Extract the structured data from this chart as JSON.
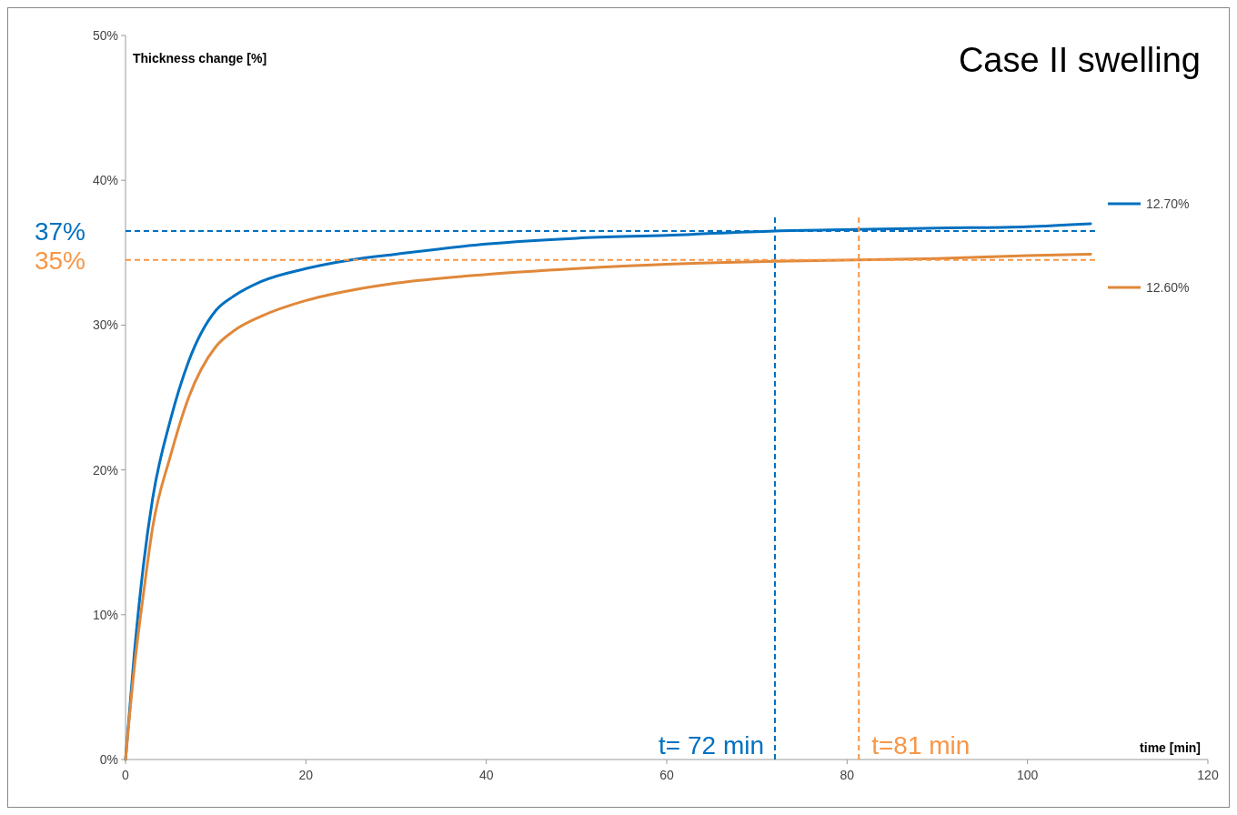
{
  "chart_data": {
    "type": "line",
    "title": "Case II swelling",
    "xlabel": "time [min]",
    "ylabel": "Thickness change [%]",
    "xlim": [
      0,
      120
    ],
    "xticks": [
      0,
      20,
      40,
      60,
      80,
      100,
      120
    ],
    "ylim": [
      0,
      50
    ],
    "yticks": [
      {
        "value": 0,
        "label": "0%"
      },
      {
        "value": 10,
        "label": "10%"
      },
      {
        "value": 20,
        "label": "20%"
      },
      {
        "value": 30,
        "label": "30%"
      },
      {
        "value": 40,
        "label": "40%"
      },
      {
        "value": 50,
        "label": "50%"
      }
    ],
    "x": [
      0,
      1,
      2,
      3,
      5,
      7,
      10,
      12,
      15,
      20,
      25,
      30,
      40,
      50,
      60,
      72,
      81,
      90,
      100,
      107
    ],
    "series": [
      {
        "name": "12.70%",
        "color": "#0070c0",
        "values": [
          0,
          7.5,
          13.5,
          18,
          23.5,
          27.5,
          31,
          32,
          33,
          33.9,
          34.5,
          34.9,
          35.6,
          36.0,
          36.2,
          36.5,
          36.6,
          36.7,
          36.8,
          37.0
        ]
      },
      {
        "name": "12.60%",
        "color": "#e0883a",
        "values": [
          0,
          6.5,
          11.5,
          16,
          21,
          25,
          28.5,
          29.6,
          30.6,
          31.7,
          32.4,
          32.9,
          33.5,
          33.9,
          34.2,
          34.4,
          34.5,
          34.6,
          34.8,
          34.9
        ]
      }
    ],
    "ref_lines": [
      {
        "axis": "y",
        "value": 36.5,
        "label": "37%",
        "color": "#0070c0",
        "line_style": "dashed"
      },
      {
        "axis": "y",
        "value": 34.5,
        "label": "35%",
        "color": "#f79646",
        "line_style": "dashed"
      },
      {
        "axis": "x",
        "value": 72,
        "label": "t= 72 min",
        "color": "#0070c0",
        "line_style": "dashed"
      },
      {
        "axis": "x",
        "value": 81.3,
        "label": "t=81 min",
        "color": "#f79646",
        "line_style": "dashed"
      }
    ],
    "legend": "right",
    "grid": false
  }
}
